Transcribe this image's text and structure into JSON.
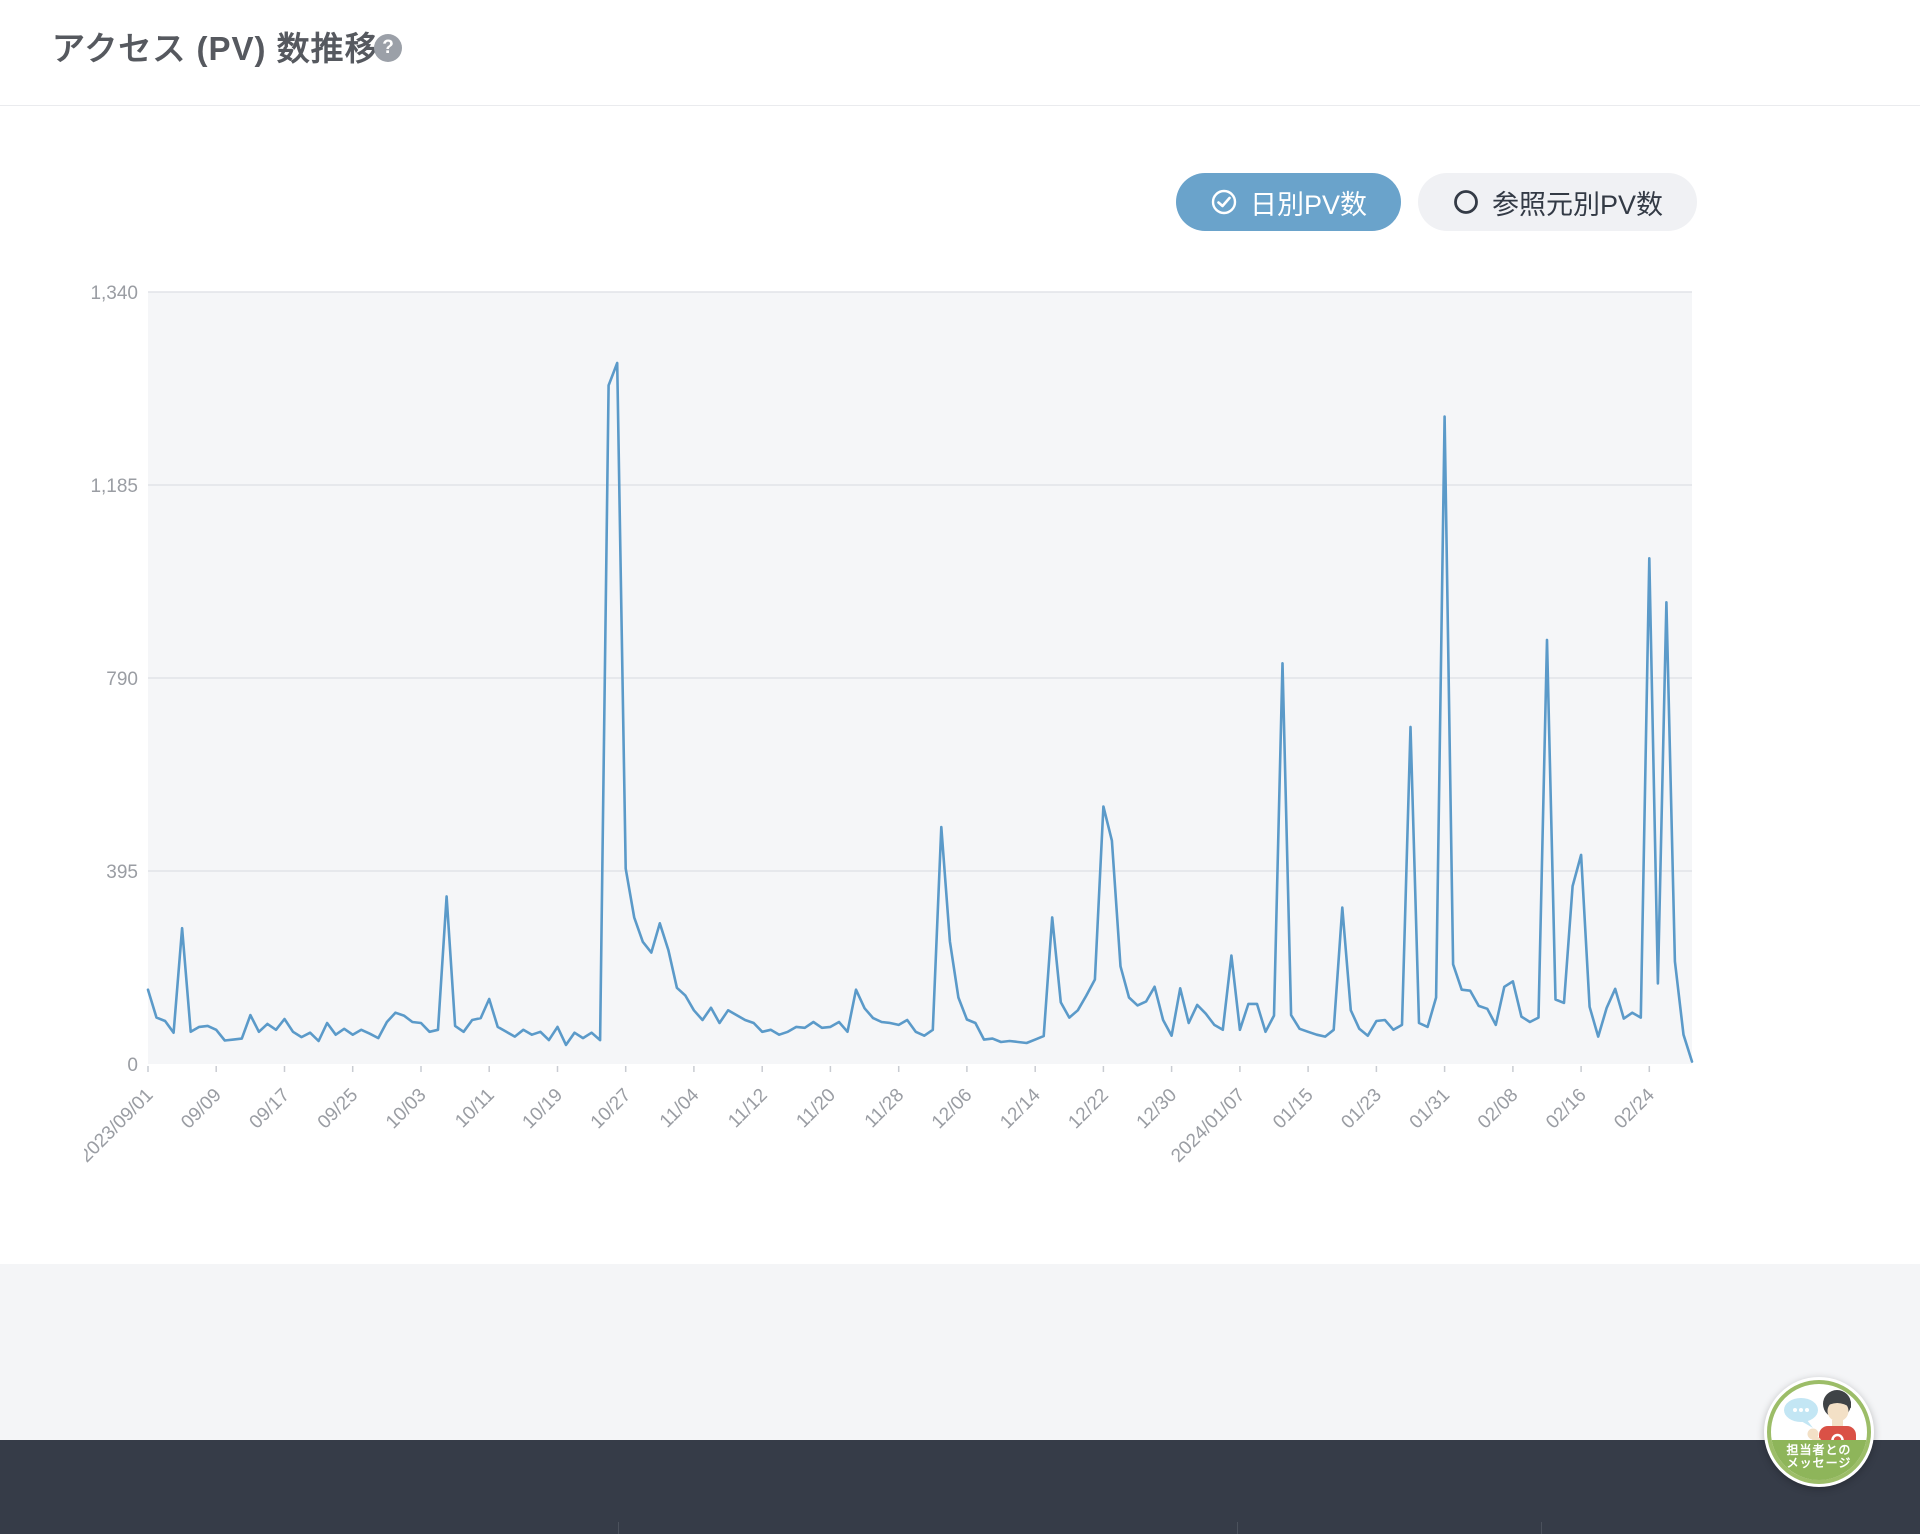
{
  "header": {
    "title": "アクセス (PV) 数推移",
    "help_glyph": "?"
  },
  "toggles": {
    "daily": {
      "label": "日別PV数",
      "selected": true
    },
    "referrer": {
      "label": "参照元別PV数",
      "selected": false
    }
  },
  "chart_data": {
    "type": "line",
    "title": "アクセス (PV) 数推移",
    "legend": "none",
    "grid": true,
    "ylim": [
      0,
      1340
    ],
    "y_tick_values": [
      0,
      395,
      790,
      1185,
      1340
    ],
    "y_tick_labels": [
      "0",
      "395",
      "790",
      "1,185",
      "1,340"
    ],
    "x_tick_interval_days": 8,
    "x_tick_labels": [
      "2023/09/01",
      "09/09",
      "09/17",
      "09/25",
      "10/03",
      "10/11",
      "10/19",
      "10/27",
      "11/04",
      "11/12",
      "11/20",
      "11/28",
      "12/06",
      "12/14",
      "12/22",
      "12/30",
      "2024/01/07",
      "01/15",
      "01/23",
      "01/31",
      "02/08",
      "02/16",
      "02/24"
    ],
    "series": [
      {
        "name": "日別PV数",
        "start_date": "2023/09/01",
        "end_date": "2024/02/29",
        "values": [
          152,
          95,
          88,
          64,
          278,
          66,
          76,
          78,
          70,
          48,
          50,
          52,
          100,
          66,
          82,
          70,
          92,
          66,
          55,
          64,
          47,
          84,
          60,
          72,
          60,
          70,
          62,
          53,
          86,
          105,
          99,
          86,
          84,
          66,
          70,
          343,
          78,
          66,
          90,
          94,
          133,
          76,
          66,
          56,
          70,
          60,
          66,
          49,
          76,
          39,
          64,
          53,
          64,
          49,
          1265,
          1283,
          400,
          300,
          250,
          228,
          288,
          233,
          156,
          140,
          110,
          90,
          115,
          84,
          110,
          100,
          90,
          84,
          66,
          70,
          60,
          66,
          76,
          74,
          86,
          74,
          76,
          86,
          66,
          152,
          114,
          94,
          86,
          84,
          80,
          90,
          66,
          58,
          70,
          485,
          251,
          136,
          91,
          84,
          50,
          52,
          45,
          47,
          45,
          43,
          50,
          57,
          300,
          126,
          95,
          110,
          140,
          173,
          527,
          457,
          200,
          136,
          120,
          128,
          158,
          90,
          58,
          155,
          84,
          121,
          103,
          80,
          70,
          222,
          70,
          123,
          123,
          66,
          99,
          820,
          100,
          72,
          66,
          60,
          56,
          70,
          320,
          110,
          72,
          58,
          88,
          90,
          70,
          80,
          690,
          84,
          76,
          136,
          1240,
          204,
          152,
          150,
          119,
          113,
          80,
          158,
          169,
          97,
          86,
          95,
          868,
          132,
          125,
          364,
          428,
          117,
          56,
          115,
          154,
          93,
          105,
          95,
          1035,
          165,
          945,
          210,
          60,
          5
        ]
      }
    ]
  },
  "chat_widget": {
    "line1": "担当者との",
    "line2": "メッセージ"
  },
  "colors": {
    "accent_blue": "#6aa3cb",
    "line_blue": "#5b9ac9",
    "plot_bg": "#f5f6f8",
    "gridline": "#e2e4e8",
    "axis_label": "#9a9da3",
    "tick_mark": "#c9ccd2",
    "footer_bg": "#363c48",
    "chat_green": "#8eb55a"
  }
}
